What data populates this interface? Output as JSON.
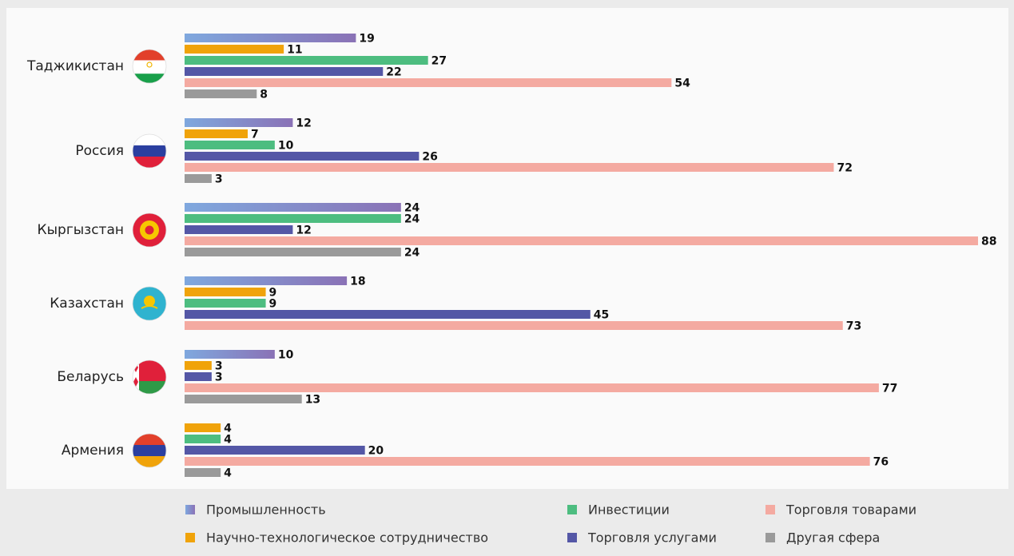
{
  "chart_data": {
    "type": "bar",
    "orientation": "horizontal",
    "categories": [
      "Таджикистан",
      "Россия",
      "Кыргызстан",
      "Казахстан",
      "Беларусь",
      "Армения"
    ],
    "series": [
      {
        "name": "Промышленность",
        "color": "#8a8fd0",
        "values": [
          19,
          12,
          24,
          18,
          10,
          null
        ]
      },
      {
        "name": "Научно-технологическое сотрудничество",
        "color": "#f0a30a",
        "values": [
          11,
          7,
          null,
          9,
          3,
          4
        ]
      },
      {
        "name": "Инвестиции",
        "color": "#4dbd80",
        "values": [
          27,
          10,
          24,
          9,
          null,
          4
        ]
      },
      {
        "name": "Торговля услугами",
        "color": "#5457a6",
        "values": [
          22,
          26,
          12,
          45,
          3,
          20
        ]
      },
      {
        "name": "Торговля товарами",
        "color": "#f4aaa1",
        "values": [
          54,
          72,
          88,
          73,
          77,
          76
        ]
      },
      {
        "name": "Другая сфера",
        "color": "#9a9a9a",
        "values": [
          8,
          3,
          24,
          null,
          13,
          4
        ]
      }
    ]
  }
}
